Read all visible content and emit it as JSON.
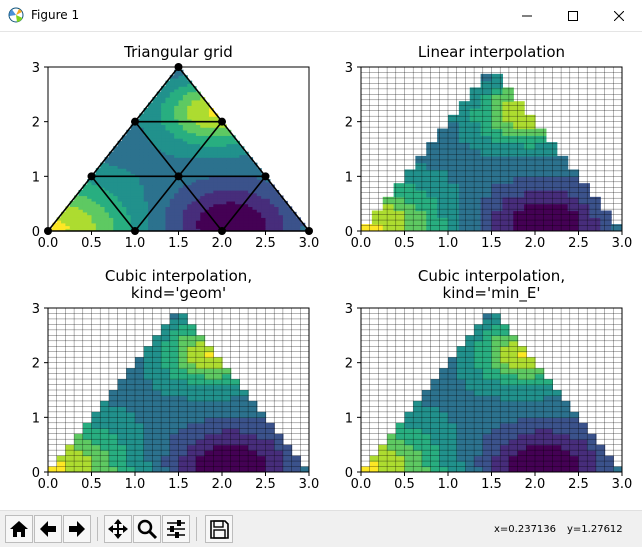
{
  "window": {
    "title": "Figure 1",
    "icon": "matplotlib-figure-icon",
    "controls": [
      "minimize-icon",
      "maximize-icon",
      "close-icon"
    ]
  },
  "colors": {
    "viridis": [
      "#440154",
      "#472d7b",
      "#3b528b",
      "#2c728e",
      "#21918c",
      "#28ae80",
      "#5ec962",
      "#addc30",
      "#fde725"
    ],
    "grid": "#000000",
    "toolbar_bg": "#f0f0f0"
  },
  "toolbar": {
    "buttons": [
      "home-icon",
      "back-icon",
      "forward-icon",
      "pan-icon",
      "zoom-icon",
      "configure-subplots-icon",
      "save-icon"
    ],
    "coords": {
      "x": "x=0.237136",
      "y": "y=1.27612"
    }
  },
  "chart_data": [
    {
      "type": "contour",
      "title": "Triangular grid",
      "xlim": [
        0,
        3
      ],
      "ylim": [
        0,
        3
      ],
      "xticks": [
        "0.0",
        "0.5",
        "1.0",
        "1.5",
        "2.0",
        "2.5",
        "3.0"
      ],
      "yticks": [
        "0",
        "1",
        "2",
        "3"
      ],
      "grid": false,
      "mesh_points": [
        [
          0,
          0
        ],
        [
          1,
          0
        ],
        [
          2,
          0
        ],
        [
          3,
          0
        ],
        [
          0.5,
          1
        ],
        [
          1.5,
          1
        ],
        [
          2.5,
          1
        ],
        [
          1,
          2
        ],
        [
          2,
          2
        ],
        [
          1.5,
          3
        ]
      ],
      "mesh_edges": [
        [
          0,
          1
        ],
        [
          1,
          2
        ],
        [
          2,
          3
        ],
        [
          0,
          4
        ],
        [
          4,
          1
        ],
        [
          1,
          5
        ],
        [
          5,
          2
        ],
        [
          2,
          6
        ],
        [
          6,
          3
        ],
        [
          4,
          5
        ],
        [
          5,
          6
        ],
        [
          4,
          7
        ],
        [
          7,
          5
        ],
        [
          5,
          8
        ],
        [
          8,
          6
        ],
        [
          7,
          8
        ],
        [
          7,
          9
        ],
        [
          9,
          8
        ]
      ],
      "surface": "piecewise-linear"
    },
    {
      "type": "contour",
      "title": "Linear interpolation",
      "xlim": [
        0,
        3
      ],
      "ylim": [
        0,
        3
      ],
      "xticks": [
        "0.0",
        "0.5",
        "1.0",
        "1.5",
        "2.0",
        "2.5",
        "3.0"
      ],
      "yticks": [
        "0",
        "1",
        "2",
        "3"
      ],
      "grid": true,
      "surface": "linear-refined"
    },
    {
      "type": "contour",
      "title": "Cubic interpolation,\nkind='geom'",
      "xlim": [
        0,
        3
      ],
      "ylim": [
        0,
        3
      ],
      "xticks": [
        "0.0",
        "0.5",
        "1.0",
        "1.5",
        "2.0",
        "2.5",
        "3.0"
      ],
      "yticks": [
        "0",
        "1",
        "2",
        "3"
      ],
      "grid": true,
      "surface": "cubic-smooth"
    },
    {
      "type": "contour",
      "title": "Cubic interpolation,\nkind='min_E'",
      "xlim": [
        0,
        3
      ],
      "ylim": [
        0,
        3
      ],
      "xticks": [
        "0.0",
        "0.5",
        "1.0",
        "1.5",
        "2.0",
        "2.5",
        "3.0"
      ],
      "yticks": [
        "0",
        "1",
        "2",
        "3"
      ],
      "grid": true,
      "surface": "cubic-smooth"
    }
  ]
}
